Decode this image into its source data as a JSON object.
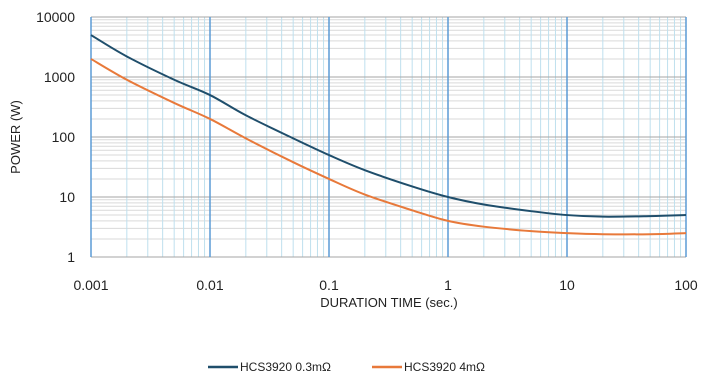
{
  "chart_data": {
    "type": "line",
    "xlabel": "DURATION TIME (sec.)",
    "ylabel": "POWER (W)",
    "x_scale": "log",
    "y_scale": "log",
    "xlim": [
      0.001,
      100
    ],
    "ylim": [
      1,
      10000
    ],
    "x_ticks": [
      "0.001",
      "0.01",
      "0.1",
      "1",
      "10",
      "100"
    ],
    "y_ticks": [
      "1",
      "10",
      "100",
      "1000",
      "10000"
    ],
    "grid": true,
    "legend_position": "bottom",
    "series": [
      {
        "name": "HCS3920 0.3mΩ",
        "color": "#1f4e6b",
        "x": [
          0.001,
          0.002,
          0.005,
          0.01,
          0.02,
          0.05,
          0.1,
          0.2,
          0.5,
          1,
          2,
          5,
          10,
          20,
          50,
          100
        ],
        "y": [
          5000,
          2200,
          900,
          500,
          230,
          95,
          50,
          28,
          15,
          10,
          7.5,
          5.8,
          5,
          4.7,
          4.8,
          5
        ]
      },
      {
        "name": "HCS3920 4mΩ",
        "color": "#e8793a",
        "x": [
          0.001,
          0.002,
          0.005,
          0.01,
          0.02,
          0.05,
          0.1,
          0.2,
          0.5,
          1,
          2,
          5,
          10,
          20,
          50,
          100
        ],
        "y": [
          2000,
          900,
          370,
          200,
          95,
          38,
          20,
          11,
          6,
          4,
          3.2,
          2.7,
          2.5,
          2.4,
          2.4,
          2.5
        ]
      }
    ]
  }
}
